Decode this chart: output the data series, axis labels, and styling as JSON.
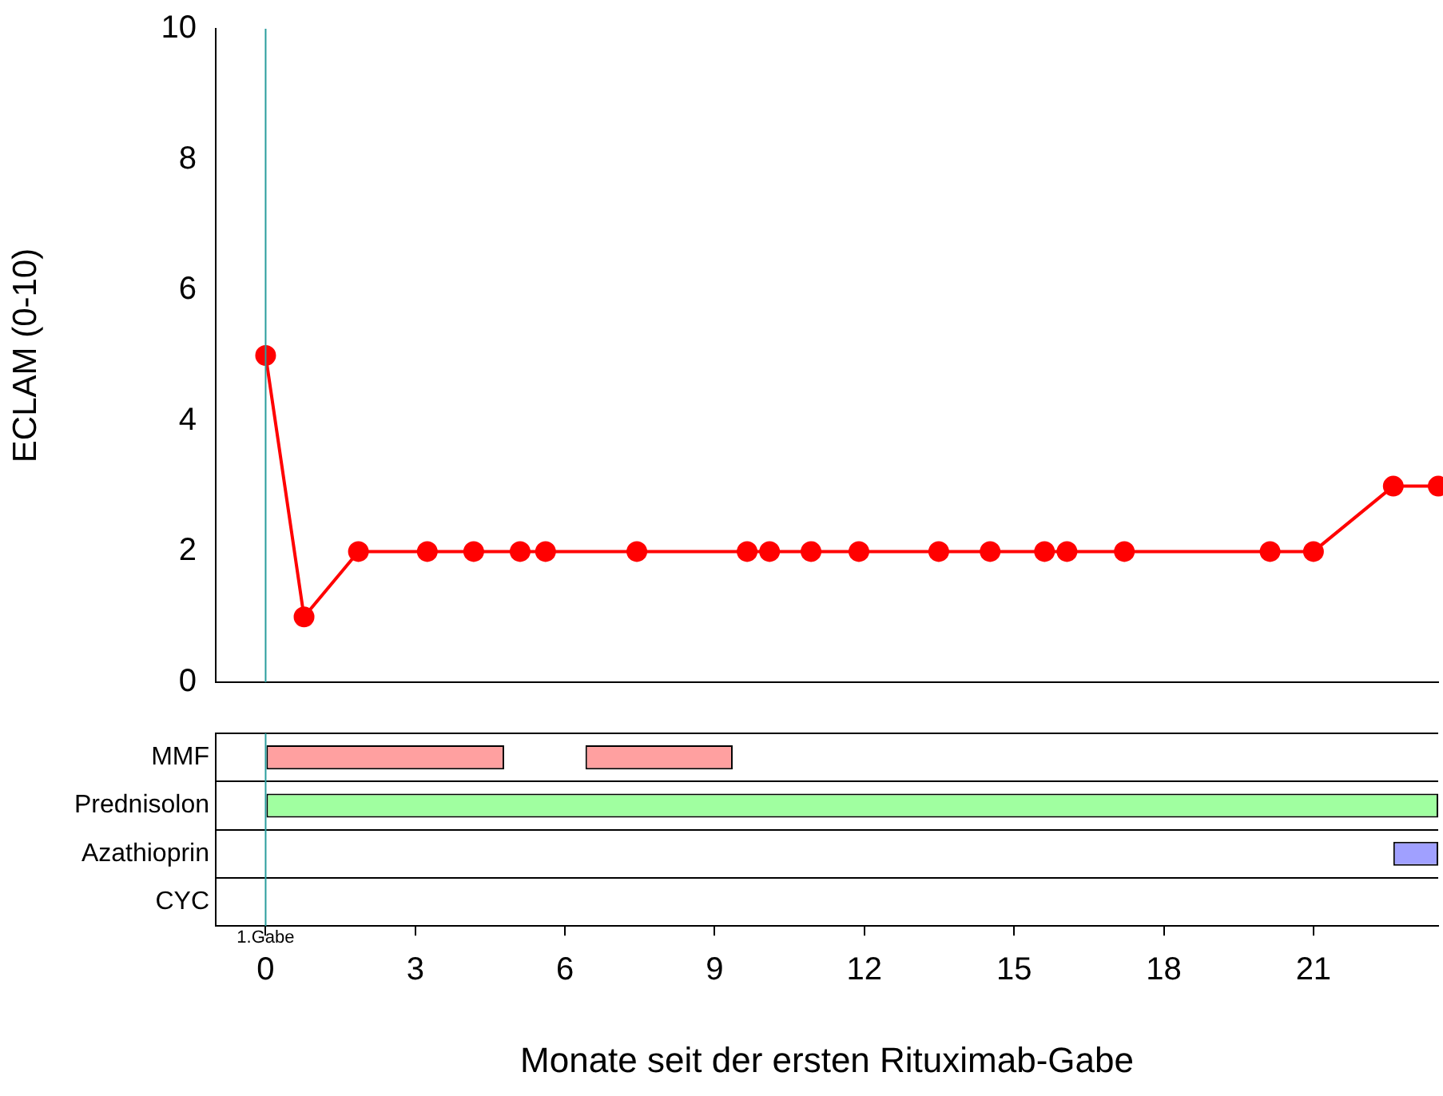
{
  "chart_data": [
    {
      "type": "line",
      "ylabel": "ECLAM (0-10)",
      "x": [
        0,
        0.77,
        1.86,
        3.24,
        4.17,
        5.1,
        5.61,
        7.44,
        9.65,
        10.1,
        10.93,
        11.89,
        13.49,
        14.52,
        15.61,
        16.06,
        17.21,
        20.13,
        21.0,
        22.6,
        23.5
      ],
      "series": [
        {
          "color": "#ff0000",
          "values": [
            5,
            1,
            2,
            2,
            2,
            2,
            2,
            2,
            2,
            2,
            2,
            2,
            2,
            2,
            2,
            2,
            2,
            2,
            2,
            3,
            3
          ]
        }
      ],
      "xlim": [
        -1,
        23.5
      ],
      "ylim": [
        0,
        10
      ],
      "yticks": [
        0,
        2,
        4,
        6,
        8,
        10
      ],
      "tick_labels": "y",
      "marker": "circle",
      "grid": false,
      "legend": false,
      "ref_lines": [
        {
          "axis": "x",
          "value": 0,
          "color": "#2a9d9d"
        }
      ]
    },
    {
      "type": "bar",
      "orientation": "horizontal",
      "xlabel": "Monate seit der ersten Rituximab-Gabe",
      "categories": [
        "MMF",
        "Prednisolon",
        "Azathioprin",
        "CYC"
      ],
      "series": [
        {
          "values": [
            4.78,
            23.5,
            0.9,
            null
          ],
          "base": [
            0,
            0,
            22.6,
            null
          ],
          "colors": [
            "#ffa0a0",
            "#a0ffa0",
            "#a0a0ff",
            null
          ]
        },
        {
          "values": [
            2.95,
            null,
            null,
            null
          ],
          "base": [
            6.41,
            null,
            null,
            null
          ],
          "colors": [
            "#ffa0a0",
            null,
            null,
            null
          ]
        }
      ],
      "xlim": [
        -1,
        23.5
      ],
      "xticks": [
        0,
        3,
        6,
        9,
        12,
        15,
        18,
        21
      ],
      "grid": "y",
      "legend": false,
      "ref_lines": [
        {
          "axis": "x",
          "value": 0,
          "label": "1.Gabe",
          "color": "#2a9d9d"
        }
      ]
    }
  ]
}
